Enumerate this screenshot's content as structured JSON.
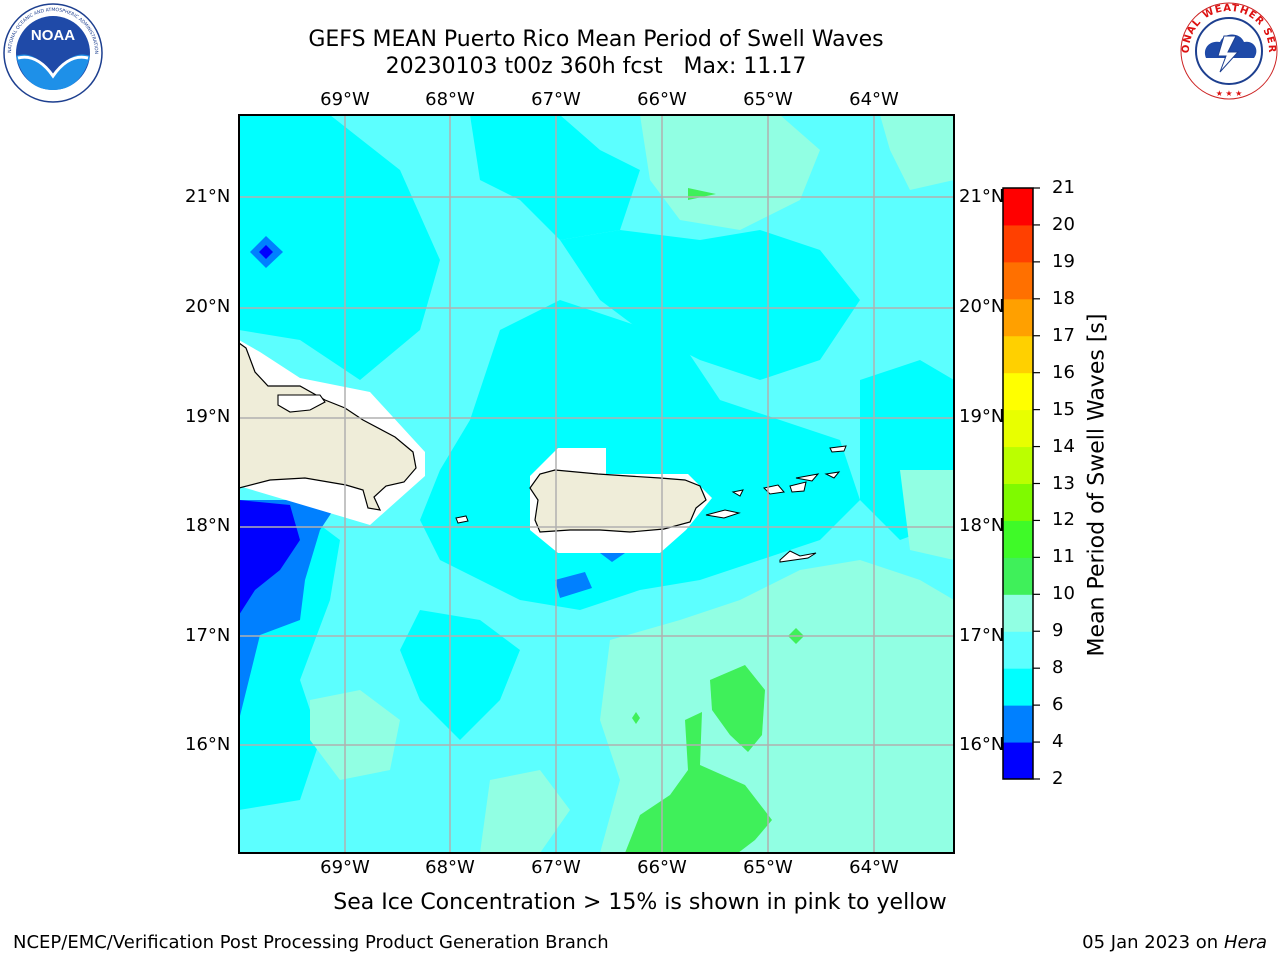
{
  "title": {
    "line1": "GEFS MEAN Puerto Rico Mean Period of Swell Waves",
    "line2": "20230103 t00z 360h fcst   Max: 11.17"
  },
  "map": {
    "lon_labels": [
      "69°W",
      "68°W",
      "67°W",
      "66°W",
      "65°W",
      "64°W"
    ],
    "lat_labels": [
      "21°N",
      "20°N",
      "19°N",
      "18°N",
      "17°N",
      "16°N"
    ],
    "regions": [
      "Hispaniola",
      "Puerto Rico",
      "Virgin Islands"
    ]
  },
  "colorbar": {
    "label": "Mean Period of Swell Waves [s]",
    "ticks": [
      "21",
      "20",
      "19",
      "18",
      "17",
      "16",
      "15",
      "14",
      "13",
      "12",
      "11",
      "10",
      "9",
      "8",
      "6",
      "4",
      "2"
    ],
    "colors": [
      "#0000ff",
      "#0080ff",
      "#00ffff",
      "#5cffff",
      "#91ffe3",
      "#3ff05a",
      "#3ffa28",
      "#7ffa00",
      "#bbff00",
      "#e8ff00",
      "#ffff00",
      "#ffd000",
      "#ffa000",
      "#ff7000",
      "#ff4000",
      "#ff0000"
    ]
  },
  "caption": "Sea Ice Concentration > 15% is shown in pink to yellow",
  "footer": {
    "branch": "NCEP/EMC/Verification Post Processing Product Generation Branch",
    "date": "05 Jan 2023 on",
    "host": "Hera"
  },
  "logos": {
    "left": "NOAA",
    "left_ring": "NATIONAL OCEANIC AND ATMOSPHERIC ADMINISTRATION · U.S. DEPARTMENT OF COMMERCE",
    "right": "NATIONAL WEATHER SERVICE"
  }
}
